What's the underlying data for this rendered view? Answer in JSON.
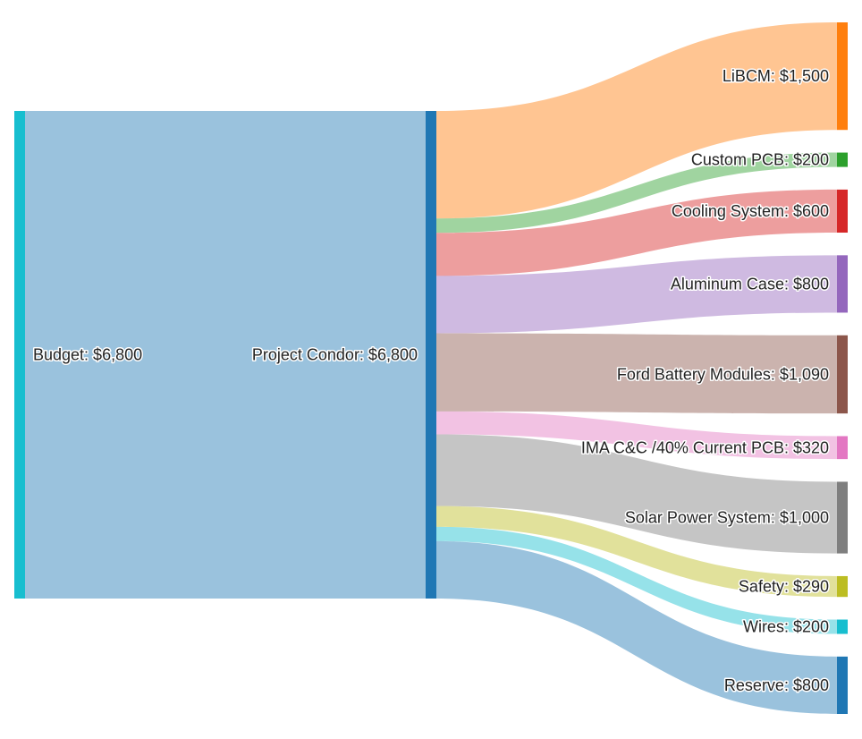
{
  "chart_data": {
    "type": "sankey",
    "title": "",
    "nodes": [
      {
        "id": "budget",
        "name": "Budget",
        "value": 6800,
        "label": "Budget: $6,800",
        "color": "#17becf",
        "level": 0
      },
      {
        "id": "condor",
        "name": "Project Condor",
        "value": 6800,
        "label": "Project Condor: $6,800",
        "color": "#1f77b4",
        "level": 1
      },
      {
        "id": "libcm",
        "name": "LiBCM",
        "value": 1500,
        "label": "LiBCM: $1,500",
        "color": "#ff7f0e",
        "level": 2
      },
      {
        "id": "custom_pcb",
        "name": "Custom PCB",
        "value": 200,
        "label": "Custom PCB: $200",
        "color": "#2ca02c",
        "level": 2
      },
      {
        "id": "cooling",
        "name": "Cooling System",
        "value": 600,
        "label": "Cooling System: $600",
        "color": "#d62728",
        "level": 2
      },
      {
        "id": "aluminum",
        "name": "Aluminum Case",
        "value": 800,
        "label": "Aluminum Case: $800",
        "color": "#9467bd",
        "level": 2
      },
      {
        "id": "ford",
        "name": "Ford Battery Modules",
        "value": 1090,
        "label": "Ford Battery Modules: $1,090",
        "color": "#8c564b",
        "level": 2
      },
      {
        "id": "ima",
        "name": "IMA C&C /40% Current PCB",
        "value": 320,
        "label": "IMA C&C /40% Current PCB: $320",
        "color": "#e377c2",
        "level": 2
      },
      {
        "id": "solar",
        "name": "Solar Power System",
        "value": 1000,
        "label": "Solar Power System: $1,000",
        "color": "#7f7f7f",
        "level": 2
      },
      {
        "id": "safety",
        "name": "Safety",
        "value": 290,
        "label": "Safety: $290",
        "color": "#bcbd22",
        "level": 2
      },
      {
        "id": "wires",
        "name": "Wires",
        "value": 200,
        "label": "Wires: $200",
        "color": "#17becf",
        "level": 2
      },
      {
        "id": "reserve",
        "name": "Reserve",
        "value": 800,
        "label": "Reserve: $800",
        "color": "#1f77b4",
        "level": 2
      }
    ],
    "links": [
      {
        "source": "budget",
        "target": "condor",
        "value": 6800
      },
      {
        "source": "condor",
        "target": "libcm",
        "value": 1500
      },
      {
        "source": "condor",
        "target": "custom_pcb",
        "value": 200
      },
      {
        "source": "condor",
        "target": "cooling",
        "value": 600
      },
      {
        "source": "condor",
        "target": "aluminum",
        "value": 800
      },
      {
        "source": "condor",
        "target": "ford",
        "value": 1090
      },
      {
        "source": "condor",
        "target": "ima",
        "value": 320
      },
      {
        "source": "condor",
        "target": "solar",
        "value": 1000
      },
      {
        "source": "condor",
        "target": "safety",
        "value": 290
      },
      {
        "source": "condor",
        "target": "wires",
        "value": 200
      },
      {
        "source": "condor",
        "target": "reserve",
        "value": 800
      }
    ]
  }
}
